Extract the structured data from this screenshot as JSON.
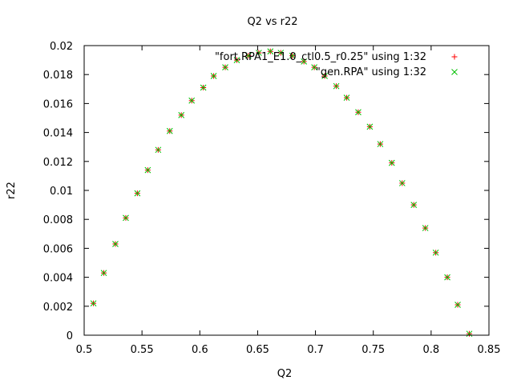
{
  "chart_data": {
    "type": "scatter",
    "title": "Q2 vs r22",
    "xlabel": "Q2",
    "ylabel": "r22",
    "xlim": [
      0.5,
      0.85
    ],
    "ylim": [
      0,
      0.02
    ],
    "xticks": [
      "0.5",
      "0.55",
      "0.6",
      "0.65",
      "0.7",
      "0.75",
      "0.8",
      "0.85"
    ],
    "yticks": [
      "0",
      "0.002",
      "0.004",
      "0.006",
      "0.008",
      "0.01",
      "0.012",
      "0.014",
      "0.016",
      "0.018",
      "0.02"
    ],
    "grid": false,
    "legend_position": "top-right",
    "series": [
      {
        "name": "\"fort.RPA1_E1.0_ctl0.5_r0.25\" using 1:32",
        "marker": "plus",
        "color": "#ff0000",
        "x": [
          0.508,
          0.517,
          0.527,
          0.536,
          0.546,
          0.555,
          0.564,
          0.574,
          0.584,
          0.593,
          0.603,
          0.612,
          0.622,
          0.632,
          0.642,
          0.651,
          0.661,
          0.67,
          0.68,
          0.69,
          0.699,
          0.708,
          0.718,
          0.727,
          0.737,
          0.747,
          0.756,
          0.766,
          0.775,
          0.785,
          0.795,
          0.804,
          0.814,
          0.823,
          0.833
        ],
        "y": [
          0.0022,
          0.0043,
          0.0063,
          0.0081,
          0.0098,
          0.0114,
          0.0128,
          0.0141,
          0.0152,
          0.0162,
          0.0171,
          0.0179,
          0.0185,
          0.019,
          0.0193,
          0.0195,
          0.0196,
          0.0195,
          0.0193,
          0.0189,
          0.0185,
          0.0179,
          0.0172,
          0.0164,
          0.0154,
          0.0144,
          0.0132,
          0.0119,
          0.0105,
          0.009,
          0.0074,
          0.0057,
          0.004,
          0.0021,
          0.0001
        ]
      },
      {
        "name": "\"gen.RPA\" using 1:32",
        "marker": "cross",
        "color": "#00c000",
        "x": [
          0.508,
          0.517,
          0.527,
          0.536,
          0.546,
          0.555,
          0.564,
          0.574,
          0.584,
          0.593,
          0.603,
          0.612,
          0.622,
          0.632,
          0.642,
          0.651,
          0.661,
          0.67,
          0.68,
          0.69,
          0.699,
          0.708,
          0.718,
          0.727,
          0.737,
          0.747,
          0.756,
          0.766,
          0.775,
          0.785,
          0.795,
          0.804,
          0.814,
          0.823,
          0.833
        ],
        "y": [
          0.0022,
          0.0043,
          0.0063,
          0.0081,
          0.0098,
          0.0114,
          0.0128,
          0.0141,
          0.0152,
          0.0162,
          0.0171,
          0.0179,
          0.0185,
          0.019,
          0.0193,
          0.0195,
          0.0196,
          0.0195,
          0.0193,
          0.0189,
          0.0185,
          0.0179,
          0.0172,
          0.0164,
          0.0154,
          0.0144,
          0.0132,
          0.0119,
          0.0105,
          0.009,
          0.0074,
          0.0057,
          0.004,
          0.0021,
          0.0001
        ]
      }
    ]
  }
}
